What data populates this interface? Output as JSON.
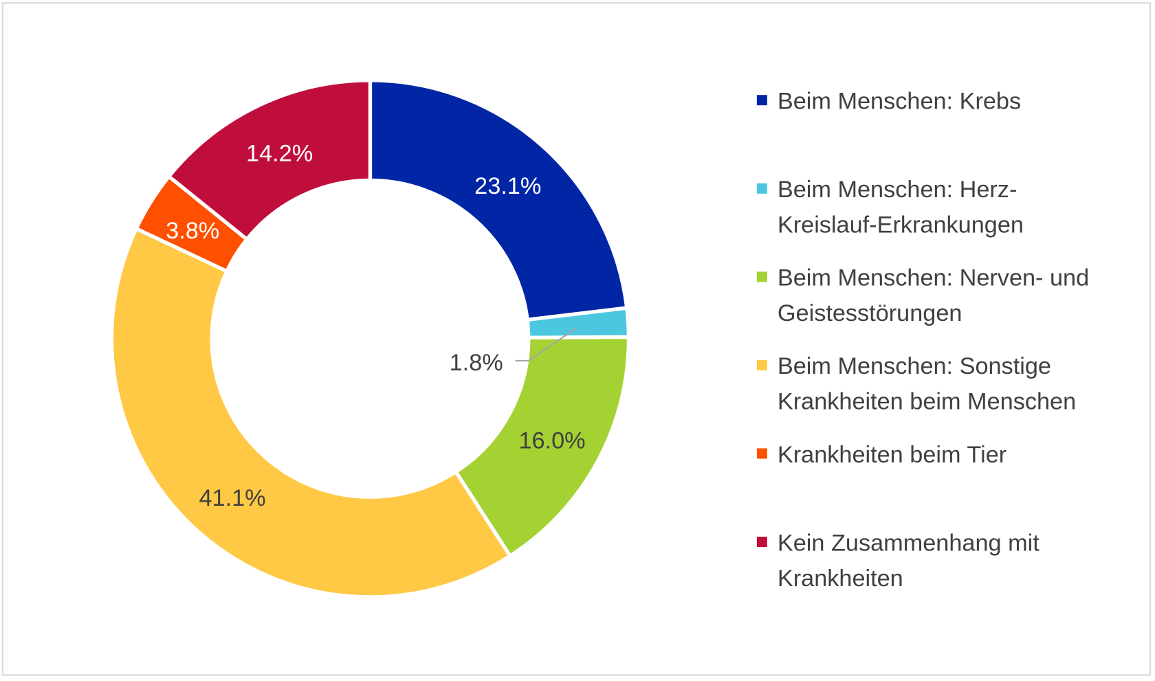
{
  "chart_data": {
    "type": "pie",
    "variant": "donut",
    "categories": [
      "Beim Menschen: Krebs",
      "Beim Menschen: Herz-Kreislauf-Erkrankungen",
      "Beim Menschen: Nerven- und Geistesstörungen",
      "Beim Menschen: Sonstige Krankheiten beim Menschen",
      "Krankheiten beim Tier",
      "Kein Zusammenhang mit Krankheiten"
    ],
    "values": [
      23.1,
      1.8,
      16.0,
      41.1,
      3.8,
      14.2
    ],
    "data_labels": [
      "23.1%",
      "1.8%",
      "16.0%",
      "41.1%",
      "3.8%",
      "14.2%"
    ],
    "colors": [
      "#0026a6",
      "#4bc8e0",
      "#a5d233",
      "#ffc845",
      "#ff4f00",
      "#c00e3c"
    ],
    "label_colors": [
      "#ffffff",
      "#404040",
      "#404040",
      "#404040",
      "#ffffff",
      "#ffffff"
    ],
    "legend": {
      "position": "right",
      "entries": [
        [
          "Beim Menschen: Krebs"
        ],
        [
          "Beim Menschen: Herz-",
          "Kreislauf-Erkrankungen"
        ],
        [
          "Beim Menschen: Nerven- und",
          "Geistesstörungen"
        ],
        [
          "Beim Menschen: Sonstige",
          "Krankheiten beim Menschen"
        ],
        [
          "Krankheiten beim Tier"
        ],
        [
          "Kein Zusammenhang mit",
          "Krankheiten"
        ]
      ]
    },
    "title": ""
  }
}
